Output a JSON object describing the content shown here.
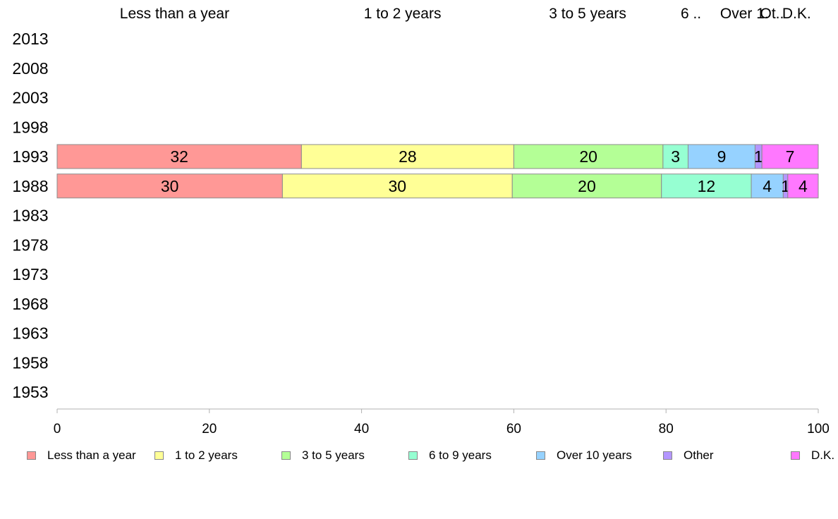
{
  "chart_data": {
    "type": "bar",
    "orientation": "horizontal",
    "stacked": true,
    "percent": true,
    "column_headers": [
      "Less than a year",
      "1 to 2 years",
      "3 to 5 years",
      "6 ..",
      "Over 1.",
      "Ot..",
      "D.K."
    ],
    "categories": [
      "2013",
      "2008",
      "2003",
      "1998",
      "1993",
      "1988",
      "1983",
      "1978",
      "1973",
      "1968",
      "1963",
      "1958",
      "1953"
    ],
    "series": [
      {
        "name": "Less than a year",
        "color": "#ff9896",
        "values": [
          null,
          null,
          null,
          null,
          32.1,
          29.6,
          null,
          null,
          null,
          null,
          null,
          null,
          null
        ],
        "labels": [
          "",
          "",
          "",
          "",
          "32",
          "30",
          "",
          "",
          "",
          "",
          "",
          "",
          ""
        ]
      },
      {
        "name": "1 to 2 years",
        "color": "#ffff96",
        "values": [
          null,
          null,
          null,
          null,
          27.9,
          30.2,
          null,
          null,
          null,
          null,
          null,
          null,
          null
        ],
        "labels": [
          "",
          "",
          "",
          "",
          "28",
          "30",
          "",
          "",
          "",
          "",
          "",
          "",
          ""
        ]
      },
      {
        "name": "3 to 5 years",
        "color": "#b4ff96",
        "values": [
          null,
          null,
          null,
          null,
          19.6,
          19.6,
          null,
          null,
          null,
          null,
          null,
          null,
          null
        ],
        "labels": [
          "",
          "",
          "",
          "",
          "20",
          "20",
          "",
          "",
          "",
          "",
          "",
          "",
          ""
        ]
      },
      {
        "name": "6 to 9 years",
        "color": "#96ffd2",
        "values": [
          null,
          null,
          null,
          null,
          3.3,
          11.8,
          null,
          null,
          null,
          null,
          null,
          null,
          null
        ],
        "labels": [
          "",
          "",
          "",
          "",
          "3",
          "12",
          "",
          "",
          "",
          "",
          "",
          "",
          ""
        ]
      },
      {
        "name": "Over 10 years",
        "color": "#96d2ff",
        "values": [
          null,
          null,
          null,
          null,
          8.8,
          4.2,
          null,
          null,
          null,
          null,
          null,
          null,
          null
        ],
        "labels": [
          "",
          "",
          "",
          "",
          "9",
          "4",
          "",
          "",
          "",
          "",
          "",
          "",
          ""
        ]
      },
      {
        "name": "Other",
        "color": "#b496ff",
        "values": [
          null,
          null,
          null,
          null,
          0.9,
          0.6,
          null,
          null,
          null,
          null,
          null,
          null,
          null
        ],
        "labels": [
          "",
          "",
          "",
          "",
          "1",
          "1",
          "",
          "",
          "",
          "",
          "",
          "",
          ""
        ]
      },
      {
        "name": "D.K.",
        "color": "#ff78ff",
        "values": [
          null,
          null,
          null,
          null,
          7.4,
          4.0,
          null,
          null,
          null,
          null,
          null,
          null,
          null
        ],
        "labels": [
          "",
          "",
          "",
          "",
          "7",
          "4",
          "",
          "",
          "",
          "",
          "",
          "",
          ""
        ]
      }
    ],
    "xlim": [
      0,
      100
    ],
    "xticks": [
      "0",
      "20",
      "40",
      "60",
      "80",
      "100"
    ],
    "grid": false,
    "legend_position": "bottom"
  }
}
